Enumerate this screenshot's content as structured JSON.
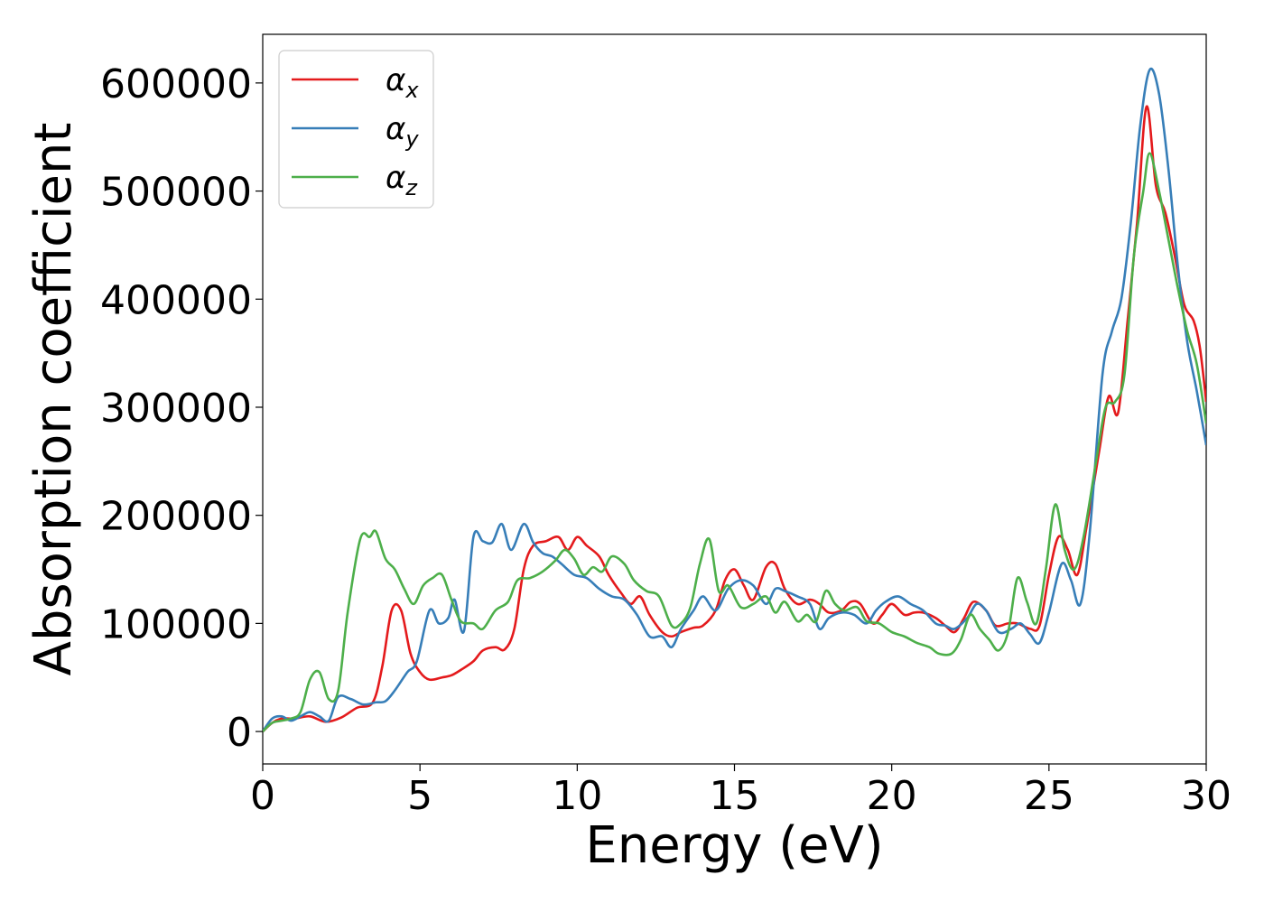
{
  "chart_data": {
    "type": "line",
    "title": "",
    "xlabel": "Energy (eV)",
    "ylabel": "Absorption coefficient",
    "xlim": [
      0,
      30
    ],
    "ylim": [
      -30000,
      645000
    ],
    "xticks": [
      0,
      5,
      10,
      15,
      20,
      25,
      30
    ],
    "yticks": [
      0,
      100000,
      200000,
      300000,
      400000,
      500000,
      600000
    ],
    "grid": false,
    "legend_position": "top-left",
    "series": [
      {
        "name": "αx",
        "symbol": "α",
        "subscript": "x",
        "color": "#e41a1c",
        "points": [
          [
            0,
            0
          ],
          [
            0.3,
            8000
          ],
          [
            0.6,
            12000
          ],
          [
            1.0,
            12000
          ],
          [
            1.5,
            14000
          ],
          [
            2.0,
            9000
          ],
          [
            2.5,
            13000
          ],
          [
            3.0,
            22000
          ],
          [
            3.5,
            27000
          ],
          [
            3.8,
            60000
          ],
          [
            4.1,
            112000
          ],
          [
            4.4,
            112000
          ],
          [
            4.7,
            72000
          ],
          [
            5.0,
            55000
          ],
          [
            5.3,
            48000
          ],
          [
            5.7,
            50000
          ],
          [
            6.0,
            52000
          ],
          [
            6.3,
            57000
          ],
          [
            6.7,
            65000
          ],
          [
            7.0,
            75000
          ],
          [
            7.4,
            78000
          ],
          [
            7.7,
            76000
          ],
          [
            8.0,
            95000
          ],
          [
            8.3,
            150000
          ],
          [
            8.6,
            172000
          ],
          [
            9.0,
            176000
          ],
          [
            9.4,
            180000
          ],
          [
            9.7,
            168000
          ],
          [
            10.0,
            180000
          ],
          [
            10.3,
            172000
          ],
          [
            10.7,
            162000
          ],
          [
            11.0,
            145000
          ],
          [
            11.4,
            128000
          ],
          [
            11.7,
            118000
          ],
          [
            12.0,
            125000
          ],
          [
            12.3,
            108000
          ],
          [
            12.7,
            92000
          ],
          [
            13.0,
            88000
          ],
          [
            13.3,
            92000
          ],
          [
            13.7,
            96000
          ],
          [
            14.0,
            98000
          ],
          [
            14.4,
            112000
          ],
          [
            14.7,
            140000
          ],
          [
            15.0,
            150000
          ],
          [
            15.3,
            135000
          ],
          [
            15.6,
            122000
          ],
          [
            16.0,
            152000
          ],
          [
            16.3,
            155000
          ],
          [
            16.6,
            132000
          ],
          [
            17.0,
            118000
          ],
          [
            17.4,
            122000
          ],
          [
            17.7,
            118000
          ],
          [
            18.0,
            110000
          ],
          [
            18.4,
            112000
          ],
          [
            18.7,
            120000
          ],
          [
            19.0,
            118000
          ],
          [
            19.4,
            100000
          ],
          [
            19.7,
            108000
          ],
          [
            20.0,
            118000
          ],
          [
            20.4,
            108000
          ],
          [
            20.7,
            110000
          ],
          [
            21.0,
            110000
          ],
          [
            21.4,
            105000
          ],
          [
            21.7,
            98000
          ],
          [
            22.0,
            92000
          ],
          [
            22.3,
            105000
          ],
          [
            22.6,
            120000
          ],
          [
            23.0,
            112000
          ],
          [
            23.3,
            98000
          ],
          [
            23.7,
            100000
          ],
          [
            24.0,
            100000
          ],
          [
            24.4,
            95000
          ],
          [
            24.7,
            98000
          ],
          [
            25.0,
            145000
          ],
          [
            25.3,
            180000
          ],
          [
            25.6,
            168000
          ],
          [
            25.9,
            145000
          ],
          [
            26.2,
            190000
          ],
          [
            26.6,
            260000
          ],
          [
            26.9,
            310000
          ],
          [
            27.2,
            295000
          ],
          [
            27.5,
            380000
          ],
          [
            27.8,
            470000
          ],
          [
            28.1,
            578000
          ],
          [
            28.4,
            505000
          ],
          [
            28.7,
            480000
          ],
          [
            29.0,
            440000
          ],
          [
            29.3,
            395000
          ],
          [
            29.6,
            380000
          ],
          [
            29.8,
            355000
          ],
          [
            30.0,
            305000
          ]
        ]
      },
      {
        "name": "αy",
        "symbol": "α",
        "subscript": "y",
        "color": "#377eb8",
        "points": [
          [
            0,
            0
          ],
          [
            0.3,
            12000
          ],
          [
            0.6,
            14000
          ],
          [
            0.9,
            10000
          ],
          [
            1.2,
            14000
          ],
          [
            1.5,
            18000
          ],
          [
            1.8,
            14000
          ],
          [
            2.1,
            10000
          ],
          [
            2.4,
            32000
          ],
          [
            2.8,
            30000
          ],
          [
            3.2,
            25000
          ],
          [
            3.6,
            27000
          ],
          [
            3.9,
            28000
          ],
          [
            4.2,
            38000
          ],
          [
            4.6,
            55000
          ],
          [
            4.9,
            65000
          ],
          [
            5.3,
            112000
          ],
          [
            5.6,
            100000
          ],
          [
            5.9,
            105000
          ],
          [
            6.1,
            122000
          ],
          [
            6.4,
            93000
          ],
          [
            6.7,
            180000
          ],
          [
            7.0,
            176000
          ],
          [
            7.3,
            175000
          ],
          [
            7.6,
            192000
          ],
          [
            7.9,
            168000
          ],
          [
            8.3,
            192000
          ],
          [
            8.6,
            175000
          ],
          [
            8.9,
            165000
          ],
          [
            9.2,
            162000
          ],
          [
            9.5,
            155000
          ],
          [
            9.9,
            145000
          ],
          [
            10.3,
            142000
          ],
          [
            10.7,
            132000
          ],
          [
            11.1,
            125000
          ],
          [
            11.5,
            122000
          ],
          [
            11.9,
            108000
          ],
          [
            12.3,
            88000
          ],
          [
            12.7,
            88000
          ],
          [
            13.0,
            78000
          ],
          [
            13.3,
            95000
          ],
          [
            13.7,
            112000
          ],
          [
            14.0,
            125000
          ],
          [
            14.4,
            112000
          ],
          [
            14.8,
            132000
          ],
          [
            15.2,
            140000
          ],
          [
            15.6,
            135000
          ],
          [
            16.0,
            118000
          ],
          [
            16.3,
            132000
          ],
          [
            16.6,
            130000
          ],
          [
            17.0,
            125000
          ],
          [
            17.4,
            118000
          ],
          [
            17.7,
            95000
          ],
          [
            18.0,
            105000
          ],
          [
            18.4,
            110000
          ],
          [
            18.8,
            108000
          ],
          [
            19.2,
            100000
          ],
          [
            19.5,
            112000
          ],
          [
            19.8,
            120000
          ],
          [
            20.2,
            125000
          ],
          [
            20.6,
            118000
          ],
          [
            21.0,
            112000
          ],
          [
            21.4,
            100000
          ],
          [
            21.7,
            98000
          ],
          [
            22.0,
            95000
          ],
          [
            22.4,
            105000
          ],
          [
            22.7,
            118000
          ],
          [
            23.0,
            112000
          ],
          [
            23.4,
            92000
          ],
          [
            23.8,
            95000
          ],
          [
            24.1,
            100000
          ],
          [
            24.4,
            90000
          ],
          [
            24.7,
            82000
          ],
          [
            25.0,
            110000
          ],
          [
            25.4,
            155000
          ],
          [
            25.7,
            140000
          ],
          [
            26.0,
            118000
          ],
          [
            26.3,
            185000
          ],
          [
            26.7,
            330000
          ],
          [
            27.0,
            370000
          ],
          [
            27.3,
            400000
          ],
          [
            27.6,
            470000
          ],
          [
            27.9,
            560000
          ],
          [
            28.2,
            612000
          ],
          [
            28.5,
            590000
          ],
          [
            28.8,
            520000
          ],
          [
            29.1,
            430000
          ],
          [
            29.4,
            360000
          ],
          [
            29.7,
            315000
          ],
          [
            30.0,
            265000
          ]
        ]
      },
      {
        "name": "αz",
        "symbol": "α",
        "subscript": "z",
        "color": "#4daf4a",
        "points": [
          [
            0,
            0
          ],
          [
            0.3,
            8000
          ],
          [
            0.6,
            10000
          ],
          [
            0.9,
            12000
          ],
          [
            1.2,
            18000
          ],
          [
            1.5,
            48000
          ],
          [
            1.8,
            55000
          ],
          [
            2.1,
            30000
          ],
          [
            2.4,
            38000
          ],
          [
            2.7,
            110000
          ],
          [
            3.1,
            178000
          ],
          [
            3.4,
            180000
          ],
          [
            3.6,
            185000
          ],
          [
            3.9,
            160000
          ],
          [
            4.2,
            150000
          ],
          [
            4.5,
            132000
          ],
          [
            4.8,
            118000
          ],
          [
            5.1,
            135000
          ],
          [
            5.4,
            142000
          ],
          [
            5.7,
            145000
          ],
          [
            6.0,
            122000
          ],
          [
            6.3,
            102000
          ],
          [
            6.7,
            100000
          ],
          [
            7.0,
            95000
          ],
          [
            7.4,
            112000
          ],
          [
            7.8,
            120000
          ],
          [
            8.1,
            140000
          ],
          [
            8.5,
            142000
          ],
          [
            8.9,
            148000
          ],
          [
            9.3,
            158000
          ],
          [
            9.6,
            168000
          ],
          [
            9.9,
            160000
          ],
          [
            10.2,
            145000
          ],
          [
            10.5,
            152000
          ],
          [
            10.8,
            148000
          ],
          [
            11.1,
            162000
          ],
          [
            11.5,
            155000
          ],
          [
            11.8,
            140000
          ],
          [
            12.2,
            130000
          ],
          [
            12.6,
            125000
          ],
          [
            13.0,
            98000
          ],
          [
            13.3,
            100000
          ],
          [
            13.6,
            115000
          ],
          [
            13.9,
            155000
          ],
          [
            14.2,
            178000
          ],
          [
            14.5,
            130000
          ],
          [
            14.8,
            135000
          ],
          [
            15.2,
            115000
          ],
          [
            15.6,
            118000
          ],
          [
            16.0,
            125000
          ],
          [
            16.3,
            110000
          ],
          [
            16.6,
            120000
          ],
          [
            17.0,
            102000
          ],
          [
            17.3,
            108000
          ],
          [
            17.6,
            102000
          ],
          [
            17.9,
            130000
          ],
          [
            18.2,
            118000
          ],
          [
            18.5,
            112000
          ],
          [
            18.9,
            115000
          ],
          [
            19.2,
            102000
          ],
          [
            19.6,
            100000
          ],
          [
            20.0,
            92000
          ],
          [
            20.4,
            88000
          ],
          [
            20.8,
            82000
          ],
          [
            21.2,
            78000
          ],
          [
            21.5,
            72000
          ],
          [
            21.9,
            72000
          ],
          [
            22.2,
            85000
          ],
          [
            22.5,
            108000
          ],
          [
            22.8,
            95000
          ],
          [
            23.1,
            85000
          ],
          [
            23.4,
            75000
          ],
          [
            23.7,
            92000
          ],
          [
            24.0,
            142000
          ],
          [
            24.3,
            120000
          ],
          [
            24.6,
            100000
          ],
          [
            24.9,
            150000
          ],
          [
            25.2,
            210000
          ],
          [
            25.5,
            168000
          ],
          [
            25.8,
            150000
          ],
          [
            26.1,
            180000
          ],
          [
            26.5,
            250000
          ],
          [
            26.8,
            300000
          ],
          [
            27.1,
            305000
          ],
          [
            27.4,
            330000
          ],
          [
            27.7,
            440000
          ],
          [
            28.0,
            500000
          ],
          [
            28.2,
            535000
          ],
          [
            28.5,
            500000
          ],
          [
            28.8,
            455000
          ],
          [
            29.1,
            410000
          ],
          [
            29.4,
            370000
          ],
          [
            29.7,
            340000
          ],
          [
            30.0,
            285000
          ]
        ]
      }
    ]
  }
}
